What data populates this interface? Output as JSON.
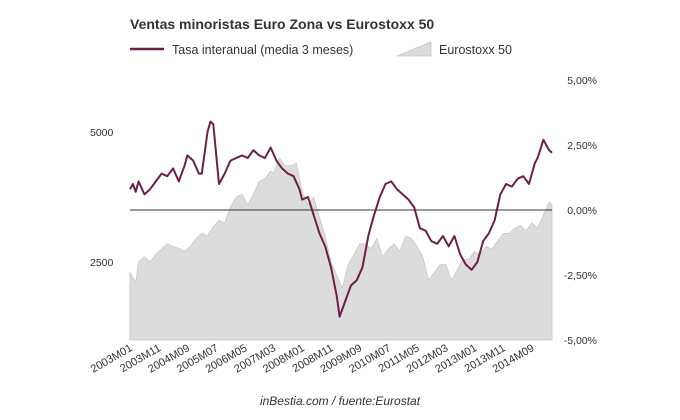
{
  "chart_data": {
    "type": "line",
    "title": "Ventas minoristas Euro Zona vs Eurostoxx 50",
    "source": "inBestia.com / fuente:Eurostat",
    "legend": {
      "placement": "top-left",
      "entries": [
        {
          "series": "retail",
          "label": "Tasa interanual (media 3 meses)",
          "color": "#6e1f48"
        },
        {
          "series": "stoxx",
          "label": "Eurostoxx 50",
          "color": "#dcdcdc"
        }
      ]
    },
    "x_tick_labels": [
      "2003M01",
      "2003M11",
      "2004M09",
      "2005M07",
      "2006M05",
      "2007M03",
      "2008M01",
      "2008M11",
      "2009M09",
      "2010M07",
      "2011M05",
      "2012M03",
      "2013M01",
      "2013M11",
      "2014M09"
    ],
    "left_axis": {
      "ylim": [
        1000,
        6000
      ],
      "tick_labels": [
        "2500",
        "5000"
      ],
      "ticks": [
        2500,
        5000
      ]
    },
    "right_axis": {
      "ylim": [
        -0.05,
        0.05
      ],
      "tick_labels": [
        "5,00%",
        "2,50%",
        "0,00%",
        "-2,50%",
        "-5,00%"
      ],
      "ticks": [
        0.05,
        0.025,
        0.0,
        -0.025,
        -0.05
      ]
    },
    "series": [
      {
        "name": "Eurostoxx 50",
        "key": "stoxx",
        "type": "area",
        "axis": "left",
        "color": "#dcdcdc",
        "points": [
          [
            "2003M01",
            2300
          ],
          [
            "2003M03",
            2100
          ],
          [
            "2003M04",
            2500
          ],
          [
            "2003M06",
            2600
          ],
          [
            "2003M08",
            2500
          ],
          [
            "2003M10",
            2650
          ],
          [
            "2003M12",
            2750
          ],
          [
            "2004M02",
            2850
          ],
          [
            "2004M04",
            2800
          ],
          [
            "2004M06",
            2760
          ],
          [
            "2004M08",
            2700
          ],
          [
            "2004M10",
            2800
          ],
          [
            "2004M12",
            2950
          ],
          [
            "2005M02",
            3050
          ],
          [
            "2005M04",
            3000
          ],
          [
            "2005M06",
            3180
          ],
          [
            "2005M08",
            3300
          ],
          [
            "2005M10",
            3250
          ],
          [
            "2005M12",
            3560
          ],
          [
            "2006M02",
            3750
          ],
          [
            "2006M04",
            3800
          ],
          [
            "2006M06",
            3600
          ],
          [
            "2006M08",
            3800
          ],
          [
            "2006M10",
            4050
          ],
          [
            "2006M12",
            4100
          ],
          [
            "2007M02",
            4250
          ],
          [
            "2007M03",
            4200
          ],
          [
            "2007M05",
            4500
          ],
          [
            "2007M07",
            4350
          ],
          [
            "2007M09",
            4350
          ],
          [
            "2007M11",
            4400
          ],
          [
            "2008M01",
            3850
          ],
          [
            "2008M03",
            3600
          ],
          [
            "2008M05",
            3750
          ],
          [
            "2008M07",
            3350
          ],
          [
            "2008M09",
            3000
          ],
          [
            "2008M11",
            2500
          ],
          [
            "2009M01",
            2250
          ],
          [
            "2009M03",
            2000
          ],
          [
            "2009M05",
            2450
          ],
          [
            "2009M07",
            2650
          ],
          [
            "2009M09",
            2850
          ],
          [
            "2009M11",
            2850
          ],
          [
            "2010M01",
            2750
          ],
          [
            "2010M03",
            2950
          ],
          [
            "2010M05",
            2600
          ],
          [
            "2010M07",
            2750
          ],
          [
            "2010M09",
            2850
          ],
          [
            "2010M11",
            2700
          ],
          [
            "2011M01",
            3000
          ],
          [
            "2011M03",
            2950
          ],
          [
            "2011M05",
            2800
          ],
          [
            "2011M07",
            2600
          ],
          [
            "2011M09",
            2150
          ],
          [
            "2011M11",
            2300
          ],
          [
            "2012M01",
            2450
          ],
          [
            "2012M03",
            2450
          ],
          [
            "2012M05",
            2150
          ],
          [
            "2012M07",
            2350
          ],
          [
            "2012M09",
            2550
          ],
          [
            "2012M11",
            2550
          ],
          [
            "2013M01",
            2700
          ],
          [
            "2013M03",
            2650
          ],
          [
            "2013M05",
            2800
          ],
          [
            "2013M07",
            2750
          ],
          [
            "2013M09",
            2900
          ],
          [
            "2013M11",
            3050
          ],
          [
            "2014M01",
            3050
          ],
          [
            "2014M03",
            3150
          ],
          [
            "2014M05",
            3200
          ],
          [
            "2014M07",
            3100
          ],
          [
            "2014M09",
            3250
          ],
          [
            "2014M11",
            3150
          ],
          [
            "2015M01",
            3400
          ],
          [
            "2015M03",
            3650
          ],
          [
            "2015M04",
            3600
          ]
        ]
      },
      {
        "name": "Tasa interanual (media 3 meses)",
        "key": "retail",
        "type": "line",
        "axis": "right",
        "color": "#6e1f48",
        "points": [
          [
            "2003M01",
            0.008
          ],
          [
            "2003M02",
            0.01
          ],
          [
            "2003M03",
            0.007
          ],
          [
            "2003M04",
            0.011
          ],
          [
            "2003M06",
            0.006
          ],
          [
            "2003M08",
            0.008
          ],
          [
            "2003M10",
            0.011
          ],
          [
            "2003M12",
            0.014
          ],
          [
            "2004M02",
            0.013
          ],
          [
            "2004M04",
            0.016
          ],
          [
            "2004M06",
            0.011
          ],
          [
            "2004M08",
            0.017
          ],
          [
            "2004M09",
            0.021
          ],
          [
            "2004M11",
            0.019
          ],
          [
            "2005M01",
            0.014
          ],
          [
            "2005M02",
            0.014
          ],
          [
            "2005M04",
            0.03
          ],
          [
            "2005M05",
            0.034
          ],
          [
            "2005M06",
            0.033
          ],
          [
            "2005M08",
            0.01
          ],
          [
            "2005M10",
            0.014
          ],
          [
            "2005M12",
            0.019
          ],
          [
            "2006M02",
            0.02
          ],
          [
            "2006M04",
            0.021
          ],
          [
            "2006M06",
            0.02
          ],
          [
            "2006M08",
            0.023
          ],
          [
            "2006M10",
            0.021
          ],
          [
            "2006M12",
            0.02
          ],
          [
            "2007M02",
            0.024
          ],
          [
            "2007M04",
            0.019
          ],
          [
            "2007M06",
            0.016
          ],
          [
            "2007M08",
            0.014
          ],
          [
            "2007M10",
            0.013
          ],
          [
            "2007M12",
            0.008
          ],
          [
            "2008M01",
            0.004
          ],
          [
            "2008M03",
            0.005
          ],
          [
            "2008M05",
            -0.002
          ],
          [
            "2008M07",
            -0.009
          ],
          [
            "2008M09",
            -0.014
          ],
          [
            "2008M11",
            -0.022
          ],
          [
            "2009M01",
            -0.033
          ],
          [
            "2009M02",
            -0.041
          ],
          [
            "2009M04",
            -0.035
          ],
          [
            "2009M06",
            -0.029
          ],
          [
            "2009M08",
            -0.027
          ],
          [
            "2009M10",
            -0.022
          ],
          [
            "2009M12",
            -0.01
          ],
          [
            "2010M02",
            -0.002
          ],
          [
            "2010M04",
            0.005
          ],
          [
            "2010M06",
            0.01
          ],
          [
            "2010M08",
            0.011
          ],
          [
            "2010M10",
            0.008
          ],
          [
            "2010M12",
            0.006
          ],
          [
            "2011M02",
            0.004
          ],
          [
            "2011M04",
            0.001
          ],
          [
            "2011M06",
            -0.007
          ],
          [
            "2011M08",
            -0.008
          ],
          [
            "2011M10",
            -0.012
          ],
          [
            "2011M12",
            -0.013
          ],
          [
            "2012M02",
            -0.01
          ],
          [
            "2012M04",
            -0.014
          ],
          [
            "2012M06",
            -0.01
          ],
          [
            "2012M08",
            -0.017
          ],
          [
            "2012M10",
            -0.021
          ],
          [
            "2012M12",
            -0.023
          ],
          [
            "2013M02",
            -0.02
          ],
          [
            "2013M04",
            -0.012
          ],
          [
            "2013M06",
            -0.009
          ],
          [
            "2013M08",
            -0.004
          ],
          [
            "2013M10",
            0.006
          ],
          [
            "2013M12",
            0.01
          ],
          [
            "2014M02",
            0.009
          ],
          [
            "2014M04",
            0.012
          ],
          [
            "2014M06",
            0.013
          ],
          [
            "2014M08",
            0.01
          ],
          [
            "2014M10",
            0.018
          ],
          [
            "2014M11",
            0.02
          ],
          [
            "2015M01",
            0.027
          ],
          [
            "2015M03",
            0.023
          ],
          [
            "2015M04",
            0.022
          ]
        ]
      }
    ]
  }
}
